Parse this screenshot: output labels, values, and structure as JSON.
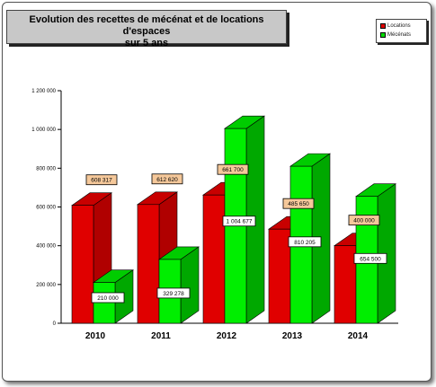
{
  "title": "Evolution des recettes de mécénat et de locations d'espaces",
  "title_line2": "sur 5 ans",
  "legend": [
    {
      "label": "Locations",
      "color": "#e00000"
    },
    {
      "label": "Mécénats",
      "color": "#00dd00"
    }
  ],
  "chart_data": {
    "type": "bar",
    "title": "Evolution des recettes de mécénat et de locations d'espaces sur 5 ans",
    "xlabel": "",
    "ylabel": "",
    "categories": [
      "2010",
      "2011",
      "2012",
      "2013",
      "2014"
    ],
    "series": [
      {
        "name": "Locations",
        "values": [
          608317,
          612620,
          661700,
          485650,
          400000
        ],
        "labels": [
          "608 317",
          "612 620",
          "661 700",
          "485 650",
          "400 000"
        ],
        "color": "#e00000",
        "side": "#b00000",
        "top": "#c80000"
      },
      {
        "name": "Mécénats",
        "values": [
          210000,
          329278,
          1004677,
          810205,
          654500
        ],
        "labels": [
          "210 000",
          "329 278",
          "1 004 677",
          "810 205",
          "654 500"
        ],
        "color": "#00ee00",
        "side": "#00a800",
        "top": "#00cc00"
      }
    ],
    "ylim": [
      0,
      1200000
    ],
    "yticks": [
      0,
      200000,
      400000,
      600000,
      800000,
      1000000,
      1200000
    ],
    "ytick_labels": [
      "0",
      "200 000",
      "400 000",
      "600 000",
      "800 000",
      "1 000 000",
      "1 200 000"
    ],
    "grid": false,
    "legend_position": "top-right"
  }
}
